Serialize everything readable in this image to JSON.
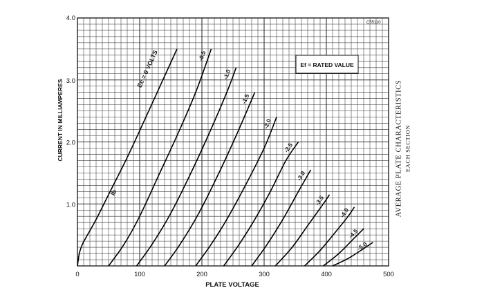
{
  "chart_data": {
    "type": "line",
    "title": "AVERAGE PLATE CHARACTERISTICS",
    "subtitle": "EACH SECTION",
    "xlabel": "PLATE VOLTAGE",
    "ylabel": "CURRENT IN MILLIAMPERES",
    "xlim": [
      0,
      500
    ],
    "ylim": [
      0,
      4.0
    ],
    "x_ticks": [
      "0",
      "100",
      "200",
      "300",
      "400",
      "500"
    ],
    "y_ticks": [
      "1.0",
      "2.0",
      "3.0",
      "4.0"
    ],
    "grid": true,
    "reference_code": "C55110",
    "annotation": "Ef = RATED VALUE",
    "curve_label_ib": "Ib",
    "series": [
      {
        "name": "Ec = 0 VOLTS",
        "points": [
          [
            0,
            0
          ],
          [
            3,
            0.2
          ],
          [
            8,
            0.35
          ],
          [
            15,
            0.48
          ],
          [
            30,
            0.75
          ],
          [
            50,
            1.15
          ],
          [
            80,
            1.75
          ],
          [
            110,
            2.4
          ],
          [
            135,
            2.95
          ],
          [
            160,
            3.5
          ]
        ]
      },
      {
        "name": "-0.5",
        "points": [
          [
            50,
            0
          ],
          [
            75,
            0.35
          ],
          [
            100,
            0.8
          ],
          [
            130,
            1.45
          ],
          [
            160,
            2.1
          ],
          [
            190,
            2.8
          ],
          [
            215,
            3.5
          ]
        ]
      },
      {
        "name": "-1.0",
        "points": [
          [
            95,
            0
          ],
          [
            120,
            0.35
          ],
          [
            150,
            0.85
          ],
          [
            180,
            1.45
          ],
          [
            210,
            2.1
          ],
          [
            240,
            2.8
          ],
          [
            255,
            3.2
          ]
        ]
      },
      {
        "name": "-1.5",
        "points": [
          [
            140,
            0
          ],
          [
            165,
            0.35
          ],
          [
            195,
            0.85
          ],
          [
            225,
            1.45
          ],
          [
            255,
            2.1
          ],
          [
            285,
            2.8
          ]
        ]
      },
      {
        "name": "-2.0",
        "points": [
          [
            190,
            0
          ],
          [
            215,
            0.35
          ],
          [
            240,
            0.75
          ],
          [
            270,
            1.3
          ],
          [
            300,
            1.9
          ],
          [
            320,
            2.4
          ]
        ]
      },
      {
        "name": "-2.5",
        "points": [
          [
            235,
            0
          ],
          [
            260,
            0.35
          ],
          [
            285,
            0.75
          ],
          [
            310,
            1.2
          ],
          [
            335,
            1.7
          ],
          [
            355,
            2.0
          ]
        ]
      },
      {
        "name": "-3.0",
        "points": [
          [
            280,
            0
          ],
          [
            305,
            0.35
          ],
          [
            330,
            0.75
          ],
          [
            355,
            1.2
          ],
          [
            375,
            1.55
          ]
        ]
      },
      {
        "name": "-3.5",
        "points": [
          [
            318,
            0
          ],
          [
            345,
            0.3
          ],
          [
            370,
            0.65
          ],
          [
            395,
            1.0
          ],
          [
            405,
            1.15
          ]
        ]
      },
      {
        "name": "-4.0",
        "points": [
          [
            365,
            0
          ],
          [
            390,
            0.25
          ],
          [
            415,
            0.55
          ],
          [
            435,
            0.8
          ],
          [
            445,
            0.95
          ]
        ]
      },
      {
        "name": "-4.5",
        "points": [
          [
            395,
            0
          ],
          [
            420,
            0.2
          ],
          [
            445,
            0.45
          ],
          [
            460,
            0.6
          ]
        ]
      },
      {
        "name": "-5.0",
        "points": [
          [
            410,
            0
          ],
          [
            435,
            0.12
          ],
          [
            460,
            0.28
          ],
          [
            475,
            0.38
          ]
        ]
      }
    ]
  }
}
